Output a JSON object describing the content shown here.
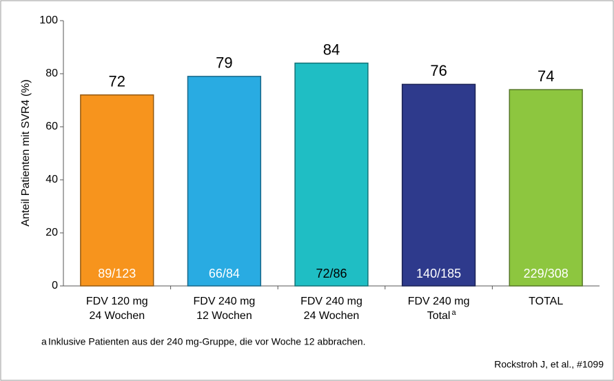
{
  "chart_data": {
    "type": "bar",
    "categories": [
      [
        "FDV 120 mg",
        "24 Wochen"
      ],
      [
        "FDV 240 mg",
        "12 Wochen"
      ],
      [
        "FDV 240 mg",
        "24 Wochen"
      ],
      [
        "FDV 240 mg",
        "Total"
      ],
      [
        "TOTAL"
      ]
    ],
    "category_marks": [
      null,
      null,
      null,
      "a",
      null
    ],
    "values": [
      72,
      79,
      84,
      76,
      74
    ],
    "n_labels": [
      "89/123",
      "66/84",
      "72/86",
      "140/185",
      "229/308"
    ],
    "n_label_colors": [
      "#ffffff",
      "#ffffff",
      "#000000",
      "#ffffff",
      "#ffffff"
    ],
    "colors": [
      "#f7941d",
      "#29abe2",
      "#1fbec4",
      "#2e3a8c",
      "#8dc63f"
    ],
    "ylabel": "Anteil Patienten mit SVR4 (%)",
    "ylim": [
      0,
      100
    ],
    "yticks": [
      0,
      20,
      40,
      60,
      80,
      100
    ],
    "footnote": {
      "marker": "a",
      "text": "Inklusive Patienten aus der 240 mg-Gruppe, die vor Woche 12 abbrachen."
    },
    "source": "Rockstroh J, et al., #1099"
  }
}
